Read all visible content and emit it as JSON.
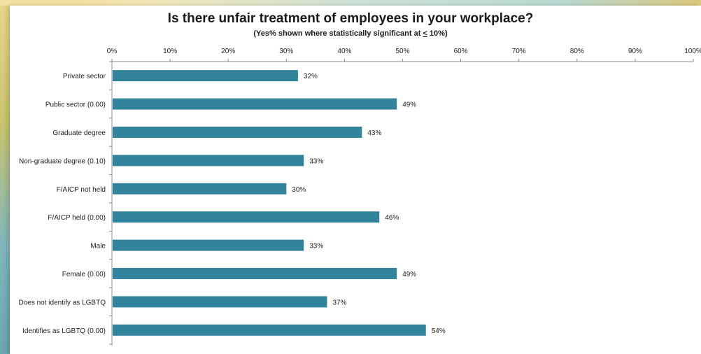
{
  "title": "Is there unfair treatment of employees in your workplace?",
  "subtitle_prefix": "(Yes% shown where statistically significant at ",
  "subtitle_leq": "<",
  "subtitle_suffix": " 10%)",
  "chart_data": {
    "type": "bar",
    "orientation": "horizontal",
    "title": "Is there unfair treatment of employees in your workplace?",
    "subtitle": "(Yes% shown where statistically significant at < 10%)",
    "categories": [
      "Private sector",
      "Public sector (0.00)",
      "Graduate degree",
      "Non-graduate degree (0.10)",
      "F/AICP not held",
      "F/AICP held (0.00)",
      "Male",
      "Female (0.00)",
      "Does not identify as LGBTQ",
      "Identifies as LGBTQ (0.00)"
    ],
    "values": [
      32,
      49,
      43,
      33,
      30,
      46,
      33,
      49,
      37,
      54
    ],
    "value_labels": [
      "32%",
      "49%",
      "43%",
      "33%",
      "30%",
      "46%",
      "33%",
      "49%",
      "37%",
      "54%"
    ],
    "xlim": [
      0,
      100
    ],
    "x_ticks": [
      "0%",
      "10%",
      "20%",
      "30%",
      "40%",
      "50%",
      "60%",
      "70%",
      "80%",
      "90%",
      "100%"
    ],
    "x_axis_position": "top",
    "grid": false,
    "bar_color": "#31849b"
  }
}
